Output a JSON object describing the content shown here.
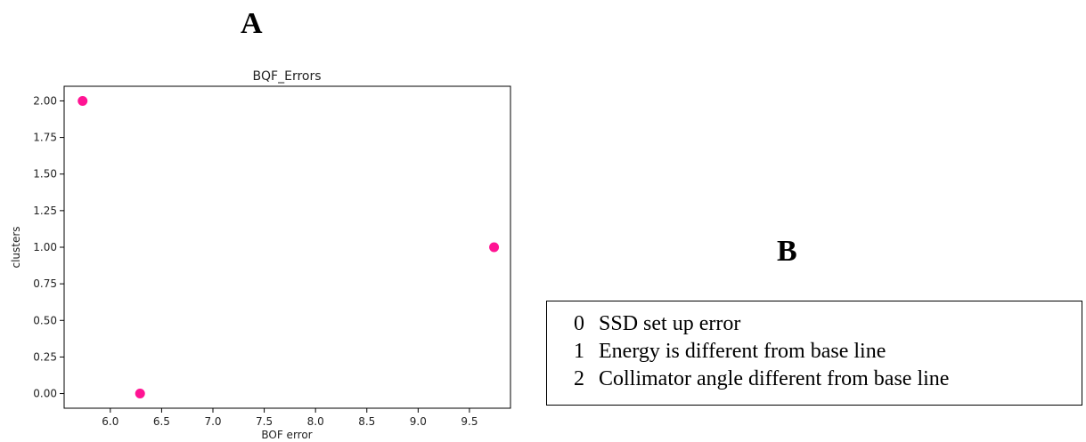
{
  "panels": {
    "a_label": "A",
    "b_label": "B"
  },
  "chart_data": {
    "type": "scatter",
    "title": "BQF_Errors",
    "xlabel": "BOF error",
    "ylabel": "clusters",
    "xlim": [
      5.55,
      9.9
    ],
    "ylim": [
      -0.1,
      2.1
    ],
    "xticks": [
      6.0,
      6.5,
      7.0,
      7.5,
      8.0,
      8.5,
      9.0,
      9.5
    ],
    "xtick_labels": [
      "6.0",
      "6.5",
      "7.0",
      "7.5",
      "8.0",
      "8.5",
      "9.0",
      "9.5"
    ],
    "yticks": [
      0.0,
      0.25,
      0.5,
      0.75,
      1.0,
      1.25,
      1.5,
      1.75,
      2.0
    ],
    "ytick_labels": [
      "0.00",
      "0.25",
      "0.50",
      "0.75",
      "1.00",
      "1.25",
      "1.50",
      "1.75",
      "2.00"
    ],
    "grid": false,
    "marker_color": "#ff1493",
    "points": [
      {
        "x": 5.73,
        "y": 2.0
      },
      {
        "x": 6.29,
        "y": 0.0
      },
      {
        "x": 9.74,
        "y": 1.0
      }
    ]
  },
  "legend_table": {
    "rows": [
      {
        "code": "0",
        "text": "SSD set up error"
      },
      {
        "code": "1",
        "text": "Energy is different from base line"
      },
      {
        "code": "2",
        "text": "Collimator angle different from base line"
      }
    ]
  }
}
